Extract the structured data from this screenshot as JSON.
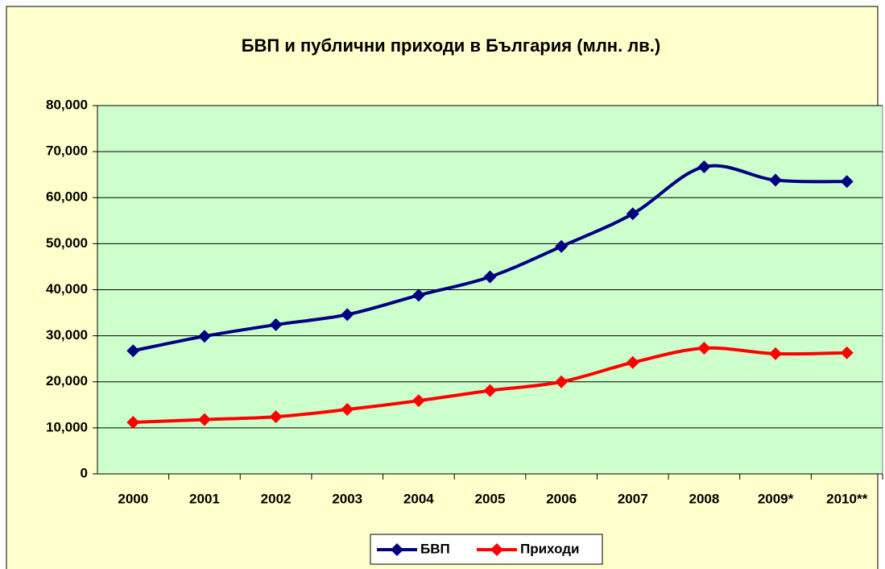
{
  "chart_data": {
    "type": "line",
    "title": "БВП и публични приходи в България (млн. лв.)",
    "categories": [
      "2000",
      "2001",
      "2002",
      "2003",
      "2004",
      "2005",
      "2006",
      "2007",
      "2008",
      "2009*",
      "2010**"
    ],
    "series": [
      {
        "name": "БВП",
        "color": "#000080",
        "values": [
          26750,
          29900,
          32400,
          34600,
          38800,
          42800,
          49400,
          56500,
          66700,
          63800,
          63500
        ]
      },
      {
        "name": "Приходи",
        "color": "#ff0000",
        "values": [
          11200,
          11800,
          12400,
          14000,
          15900,
          18100,
          20000,
          24200,
          27300,
          26100,
          26300
        ]
      }
    ],
    "ylim": [
      0,
      80000
    ],
    "yticks": [
      0,
      {
        "value": 10000,
        "label": "10,000"
      },
      {
        "value": 20000,
        "label": "20,000"
      },
      {
        "value": 30000,
        "label": "30,000"
      },
      {
        "value": 40000,
        "label": "40,000"
      },
      {
        "value": 50000,
        "label": "50,000"
      },
      {
        "value": 60000,
        "label": "60,000"
      },
      {
        "value": 70000,
        "label": "70,000"
      },
      {
        "value": 80000,
        "label": "80,000"
      }
    ],
    "grid": true,
    "legend": "bottom"
  }
}
